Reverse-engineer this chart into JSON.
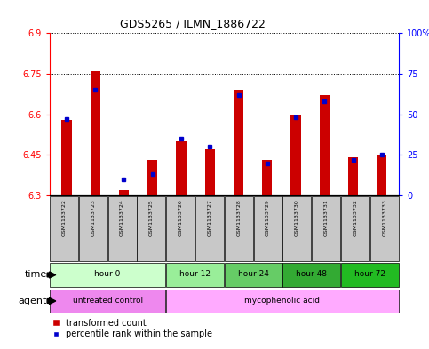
{
  "title": "GDS5265 / ILMN_1886722",
  "samples": [
    "GSM1133722",
    "GSM1133723",
    "GSM1133724",
    "GSM1133725",
    "GSM1133726",
    "GSM1133727",
    "GSM1133728",
    "GSM1133729",
    "GSM1133730",
    "GSM1133731",
    "GSM1133732",
    "GSM1133733"
  ],
  "transformed_count": [
    6.58,
    6.76,
    6.32,
    6.43,
    6.5,
    6.47,
    6.69,
    6.43,
    6.6,
    6.67,
    6.44,
    6.45
  ],
  "percentile_rank": [
    47,
    65,
    10,
    13,
    35,
    30,
    62,
    20,
    48,
    58,
    22,
    25
  ],
  "ylim_left": [
    6.3,
    6.9
  ],
  "yticks_left": [
    6.3,
    6.45,
    6.6,
    6.75,
    6.9
  ],
  "ylim_right": [
    0,
    100
  ],
  "yticks_right": [
    0,
    25,
    50,
    75,
    100
  ],
  "ytick_labels_right": [
    "0",
    "25",
    "50",
    "75",
    "100%"
  ],
  "bar_bottom": 6.3,
  "bar_color_red": "#cc0000",
  "bar_color_blue": "#0000cc",
  "bg_color_sample": "#c8c8c8",
  "time_groups": [
    {
      "label": "hour 0",
      "samples": [
        0,
        1,
        2,
        3
      ],
      "color": "#ccffcc"
    },
    {
      "label": "hour 12",
      "samples": [
        4,
        5
      ],
      "color": "#99ee99"
    },
    {
      "label": "hour 24",
      "samples": [
        6,
        7
      ],
      "color": "#66cc66"
    },
    {
      "label": "hour 48",
      "samples": [
        8,
        9
      ],
      "color": "#33aa33"
    },
    {
      "label": "hour 72",
      "samples": [
        10,
        11
      ],
      "color": "#22bb22"
    }
  ],
  "agent_groups": [
    {
      "label": "untreated control",
      "samples": [
        0,
        1,
        2,
        3
      ],
      "color": "#ee88ee"
    },
    {
      "label": "mycophenolic acid",
      "samples": [
        4,
        5,
        6,
        7,
        8,
        9,
        10,
        11
      ],
      "color": "#ffaaff"
    }
  ],
  "legend_red_label": "transformed count",
  "legend_blue_label": "percentile rank within the sample",
  "xlabel_time": "time",
  "xlabel_agent": "agent",
  "bar_width": 0.35
}
